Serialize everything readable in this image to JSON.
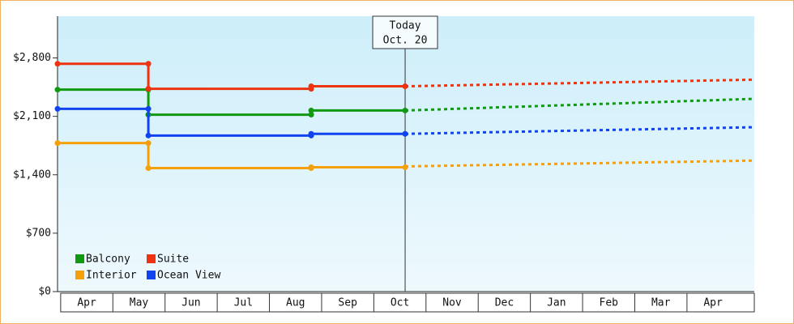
{
  "chart_data": {
    "type": "step-line",
    "categories": [
      "Apr",
      "May",
      "Jun",
      "Jul",
      "Aug",
      "Sep",
      "Oct",
      "Nov",
      "Dec",
      "Jan",
      "Feb",
      "Mar",
      "Apr"
    ],
    "x": [
      -0.06,
      1.68,
      4.8,
      6.6
    ],
    "forecast_x": [
      6.6,
      13.29
    ],
    "xlim": [
      -0.06,
      13.29
    ],
    "ylim": [
      0,
      3300
    ],
    "yticks": [
      {
        "value": 0,
        "label": "$0"
      },
      {
        "value": 700,
        "label": "$700"
      },
      {
        "value": 1400,
        "label": "$1,400"
      },
      {
        "value": 2100,
        "label": "$2,100"
      },
      {
        "value": 2800,
        "label": "$2,800"
      }
    ],
    "series": [
      {
        "name": "Balcony",
        "color": "#119911",
        "values": [
          2420,
          2120,
          2170,
          2170
        ],
        "forecast": [
          2170,
          2310
        ]
      },
      {
        "name": "Suite",
        "color": "#ee3311",
        "values": [
          2730,
          2430,
          2460,
          2460
        ],
        "forecast": [
          2460,
          2540
        ]
      },
      {
        "name": "Interior",
        "color": "#f5a00a",
        "values": [
          1780,
          1480,
          1490,
          1500
        ],
        "forecast": [
          1500,
          1570
        ]
      },
      {
        "name": "Ocean View",
        "color": "#1144ee",
        "values": [
          2190,
          1870,
          1890,
          1890
        ],
        "forecast": [
          1890,
          1970
        ]
      }
    ],
    "annotation": {
      "x": 6.6,
      "lines": [
        "Today",
        "Oct. 20"
      ]
    }
  }
}
